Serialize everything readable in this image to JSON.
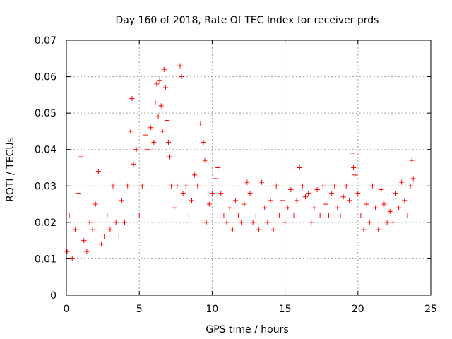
{
  "chart_data": {
    "type": "scatter",
    "title": "Day 160 of 2018, Rate Of TEC Index for receiver prds",
    "xlabel": "GPS time / hours",
    "ylabel": "ROTI / TECUs",
    "xlim": [
      0,
      25
    ],
    "ylim": [
      0,
      0.07
    ],
    "grid": true,
    "marker": "+",
    "color": "#ff0000",
    "x_ticks": [
      0,
      5,
      10,
      15,
      20,
      25
    ],
    "x_tick_labels": [
      "0",
      "5",
      "10",
      "15",
      "20",
      "25"
    ],
    "y_ticks": [
      0,
      0.01,
      0.02,
      0.03,
      0.04,
      0.05,
      0.06,
      0.07
    ],
    "y_tick_labels": [
      "0",
      "0.01",
      "0.02",
      "0.03",
      "0.04",
      "0.05",
      "0.06",
      "0.07"
    ],
    "series": [
      {
        "name": "ROTI",
        "x": [
          0.05,
          0.2,
          0.4,
          0.6,
          0.8,
          1.0,
          1.2,
          1.4,
          1.6,
          1.8,
          2.0,
          2.2,
          2.4,
          2.6,
          2.8,
          3.0,
          3.2,
          3.4,
          3.6,
          3.8,
          4.0,
          4.2,
          4.4,
          4.5,
          4.6,
          4.8,
          5.0,
          5.2,
          5.4,
          5.6,
          5.8,
          6.0,
          6.1,
          6.2,
          6.3,
          6.4,
          6.5,
          6.6,
          6.7,
          6.8,
          6.9,
          7.0,
          7.1,
          7.2,
          7.4,
          7.6,
          7.8,
          7.9,
          8.0,
          8.2,
          8.4,
          8.6,
          8.8,
          9.0,
          9.2,
          9.4,
          9.5,
          9.6,
          9.8,
          10.0,
          10.2,
          10.4,
          10.6,
          10.8,
          11.0,
          11.2,
          11.4,
          11.6,
          11.8,
          12.0,
          12.2,
          12.4,
          12.6,
          12.8,
          13.0,
          13.2,
          13.4,
          13.6,
          13.8,
          14.0,
          14.2,
          14.4,
          14.6,
          14.8,
          15.0,
          15.2,
          15.4,
          15.6,
          15.8,
          16.0,
          16.2,
          16.4,
          16.6,
          16.8,
          17.0,
          17.2,
          17.4,
          17.6,
          17.8,
          18.0,
          18.2,
          18.4,
          18.6,
          18.8,
          19.0,
          19.2,
          19.4,
          19.6,
          19.7,
          19.8,
          20.0,
          20.2,
          20.4,
          20.6,
          20.8,
          21.0,
          21.2,
          21.4,
          21.6,
          21.8,
          22.0,
          22.2,
          22.4,
          22.6,
          22.8,
          23.0,
          23.2,
          23.4,
          23.6,
          23.7,
          23.8
        ],
        "y": [
          0.012,
          0.022,
          0.01,
          0.018,
          0.028,
          0.038,
          0.015,
          0.012,
          0.02,
          0.018,
          0.025,
          0.034,
          0.014,
          0.016,
          0.022,
          0.018,
          0.03,
          0.02,
          0.016,
          0.026,
          0.02,
          0.03,
          0.045,
          0.054,
          0.036,
          0.04,
          0.022,
          0.03,
          0.044,
          0.04,
          0.046,
          0.042,
          0.053,
          0.058,
          0.049,
          0.059,
          0.052,
          0.045,
          0.062,
          0.057,
          0.048,
          0.042,
          0.038,
          0.03,
          0.024,
          0.03,
          0.063,
          0.06,
          0.028,
          0.03,
          0.022,
          0.026,
          0.033,
          0.03,
          0.047,
          0.042,
          0.037,
          0.02,
          0.025,
          0.028,
          0.032,
          0.035,
          0.028,
          0.022,
          0.02,
          0.024,
          0.018,
          0.026,
          0.022,
          0.02,
          0.025,
          0.031,
          0.028,
          0.02,
          0.022,
          0.018,
          0.031,
          0.024,
          0.02,
          0.026,
          0.018,
          0.03,
          0.022,
          0.026,
          0.02,
          0.024,
          0.029,
          0.022,
          0.026,
          0.035,
          0.03,
          0.027,
          0.028,
          0.02,
          0.024,
          0.029,
          0.022,
          0.03,
          0.025,
          0.022,
          0.028,
          0.03,
          0.024,
          0.022,
          0.027,
          0.03,
          0.026,
          0.039,
          0.035,
          0.033,
          0.028,
          0.022,
          0.018,
          0.025,
          0.02,
          0.03,
          0.024,
          0.018,
          0.029,
          0.025,
          0.02,
          0.023,
          0.02,
          0.028,
          0.024,
          0.031,
          0.026,
          0.022,
          0.03,
          0.037,
          0.032
        ]
      }
    ]
  }
}
